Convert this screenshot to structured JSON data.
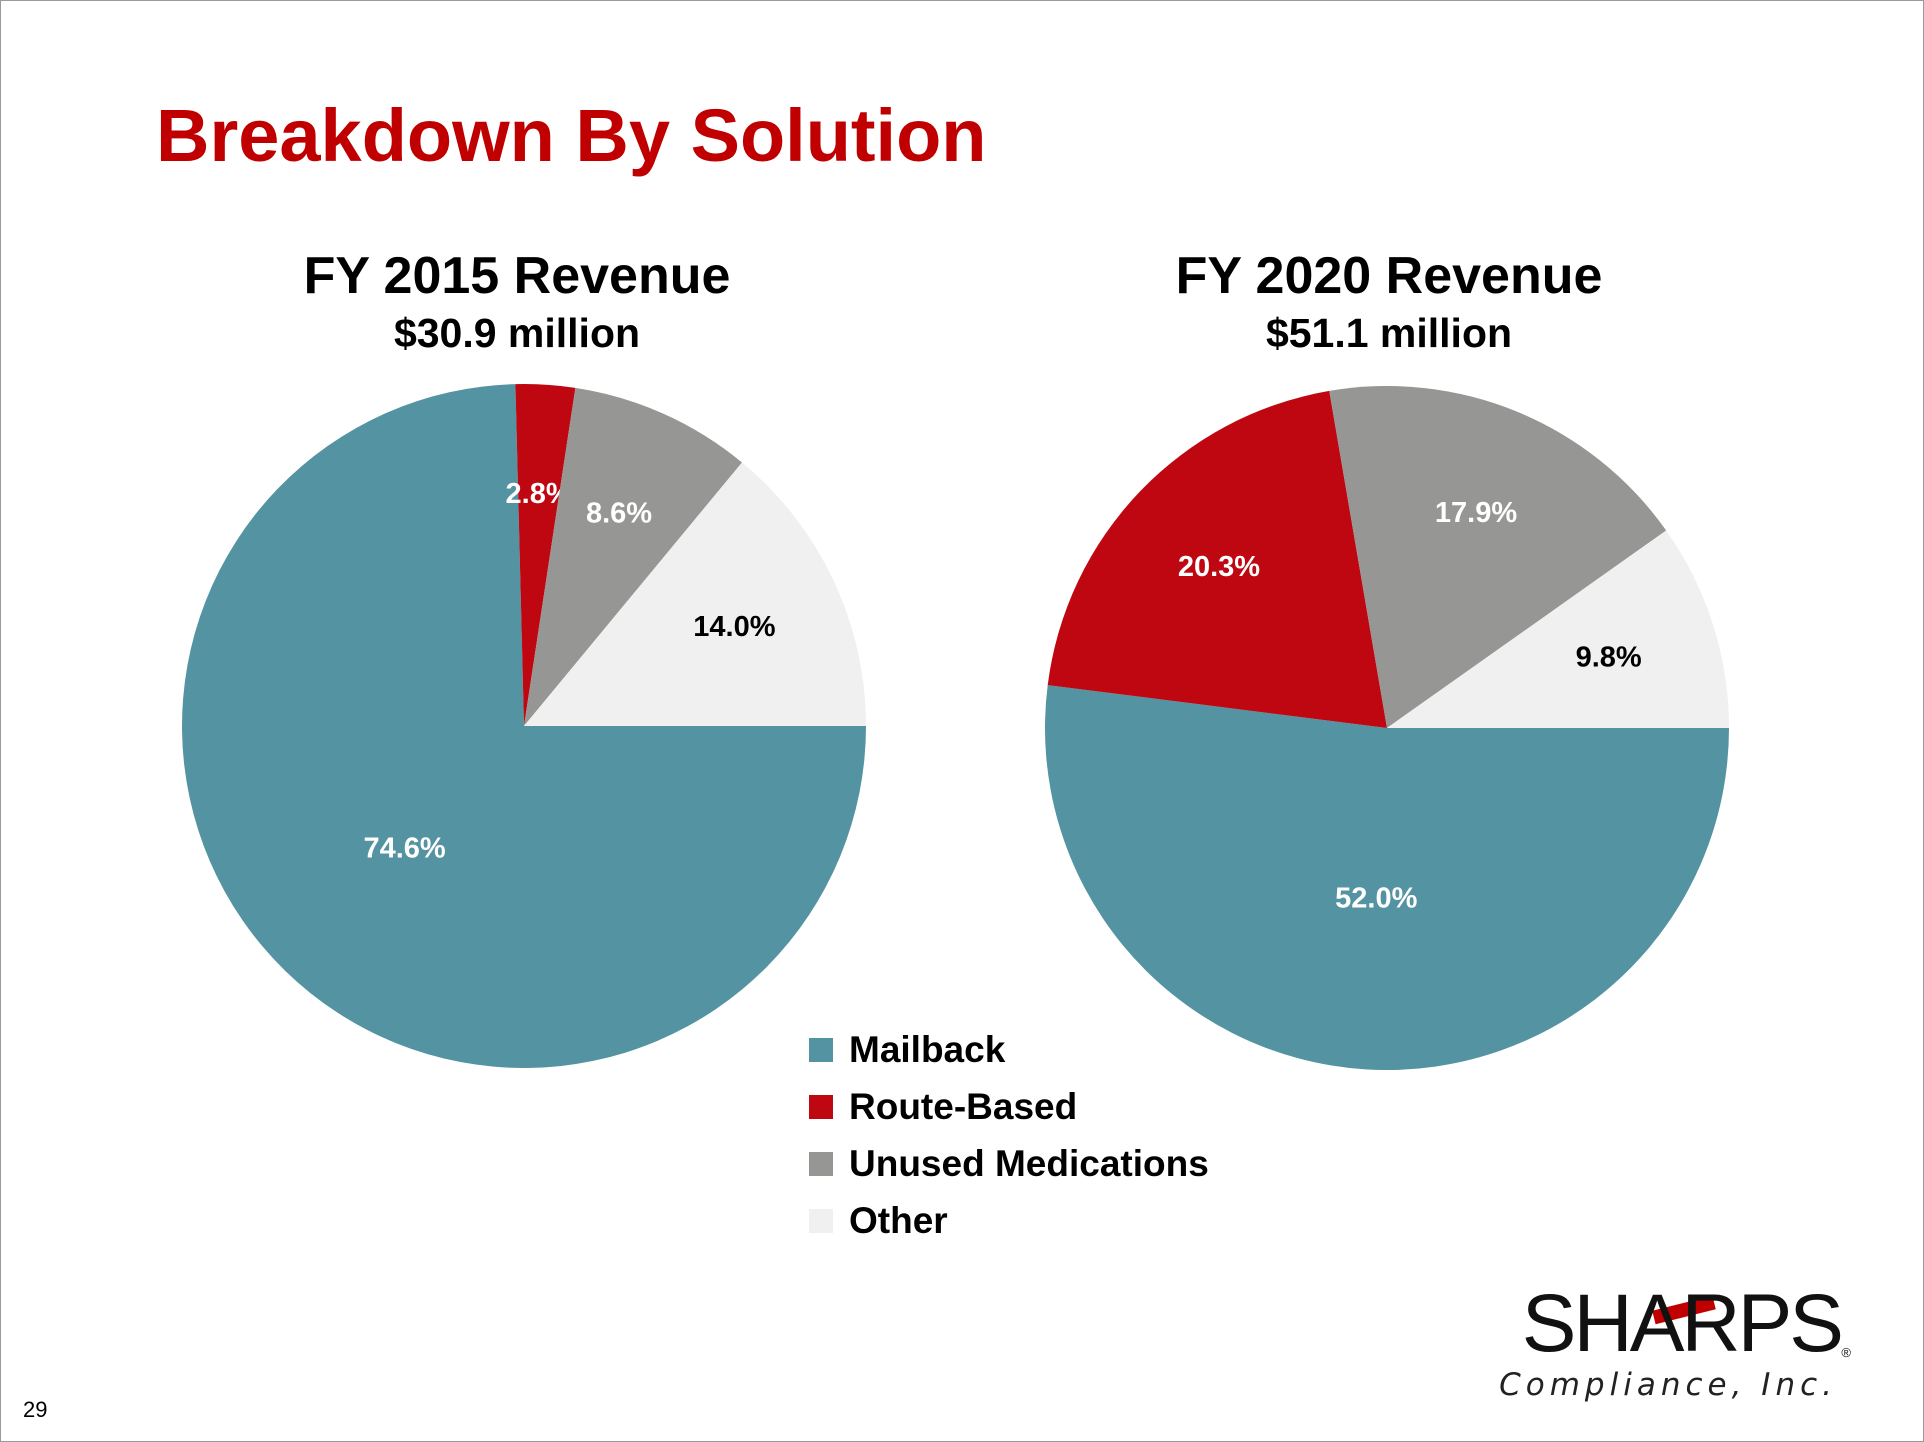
{
  "slide": {
    "title": "Breakdown By Solution",
    "page_number": "29"
  },
  "logo": {
    "name": "SHARPS",
    "registered": "®",
    "tagline": "Compliance, Inc."
  },
  "colors": {
    "title": "#c00000",
    "Mailback": "#5493a1",
    "Route-Based": "#bf0711",
    "Unused Medications": "#969794",
    "Other": "#f0f0f0"
  },
  "chart_data": [
    {
      "type": "pie",
      "title": "FY 2015 Revenue",
      "subtitle": "$30.9 million",
      "categories": [
        "Mailback",
        "Route-Based",
        "Unused Medications",
        "Other"
      ],
      "values": [
        74.6,
        2.8,
        8.6,
        14.0
      ],
      "labels": [
        "74.6%",
        "2.8%",
        "8.6%",
        "14.0%"
      ],
      "label_colors": [
        "#ffffff",
        "#ffffff",
        "#ffffff",
        "#000000"
      ]
    },
    {
      "type": "pie",
      "title": "FY 2020 Revenue",
      "subtitle": "$51.1 million",
      "categories": [
        "Mailback",
        "Route-Based",
        "Unused Medications",
        "Other"
      ],
      "values": [
        52.0,
        20.3,
        17.9,
        9.8
      ],
      "labels": [
        "52.0%",
        "20.3%",
        "17.9%",
        "9.8%"
      ],
      "label_colors": [
        "#ffffff",
        "#ffffff",
        "#ffffff",
        "#000000"
      ]
    }
  ],
  "legend": {
    "placement": "bottom-center",
    "items": [
      "Mailback",
      "Route-Based",
      "Unused Medications",
      "Other"
    ]
  }
}
